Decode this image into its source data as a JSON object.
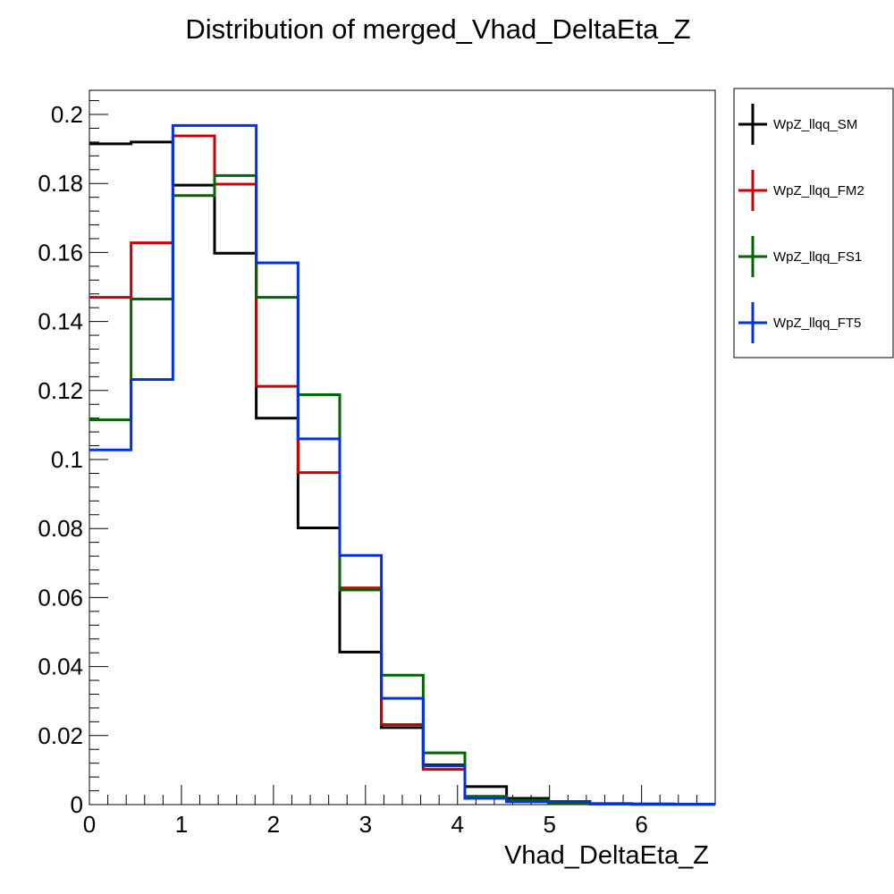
{
  "chart_data": {
    "type": "line",
    "style": "step-histogram",
    "title": "Distribution of merged_Vhad_DeltaEta_Z",
    "xlabel": "Vhad_DeltaEta_Z",
    "ylabel": "",
    "xlim": [
      0,
      6.8
    ],
    "ylim": [
      0,
      0.207
    ],
    "x_ticks": [
      "0",
      "1",
      "2",
      "3",
      "4",
      "5",
      "6"
    ],
    "y_ticks": [
      "0",
      "0.02",
      "0.04",
      "0.06",
      "0.08",
      "0.1",
      "0.12",
      "0.14",
      "0.16",
      "0.18",
      "0.2"
    ],
    "legend_position": "right",
    "grid": false,
    "bin_edges": [
      0,
      0.453,
      0.907,
      1.36,
      1.813,
      2.267,
      2.72,
      3.173,
      3.627,
      4.08,
      4.533,
      4.987,
      5.44,
      5.893,
      6.347,
      6.8
    ],
    "series": [
      {
        "name": "WpZ_llqq_SM",
        "color": "#000000",
        "values": [
          0.1915,
          0.192,
          0.1795,
          0.1598,
          0.112,
          0.0802,
          0.0442,
          0.0223,
          0.0115,
          0.0052,
          0.0018,
          0.0008,
          0.0003,
          0.0002,
          0.0001
        ]
      },
      {
        "name": "WpZ_llqq_FM2",
        "color": "#cc0000",
        "values": [
          0.147,
          0.1628,
          0.1938,
          0.1798,
          0.1212,
          0.0962,
          0.0628,
          0.0232,
          0.0102,
          0.0022,
          0.0012,
          0.0004,
          0.0002,
          0.0001,
          0.0001
        ]
      },
      {
        "name": "WpZ_llqq_FS1",
        "color": "#006600",
        "values": [
          0.1115,
          0.1465,
          0.1765,
          0.1823,
          0.147,
          0.1188,
          0.0622,
          0.0375,
          0.015,
          0.0024,
          0.0012,
          0.0005,
          0.0002,
          0.0001,
          0.0001
        ]
      },
      {
        "name": "WpZ_llqq_FT5",
        "color": "#0033dd",
        "values": [
          0.1028,
          0.1232,
          0.1968,
          0.1968,
          0.157,
          0.106,
          0.0722,
          0.0308,
          0.0112,
          0.0018,
          0.0008,
          0.0009,
          0.0002,
          0.0001,
          0.0001
        ]
      }
    ]
  }
}
